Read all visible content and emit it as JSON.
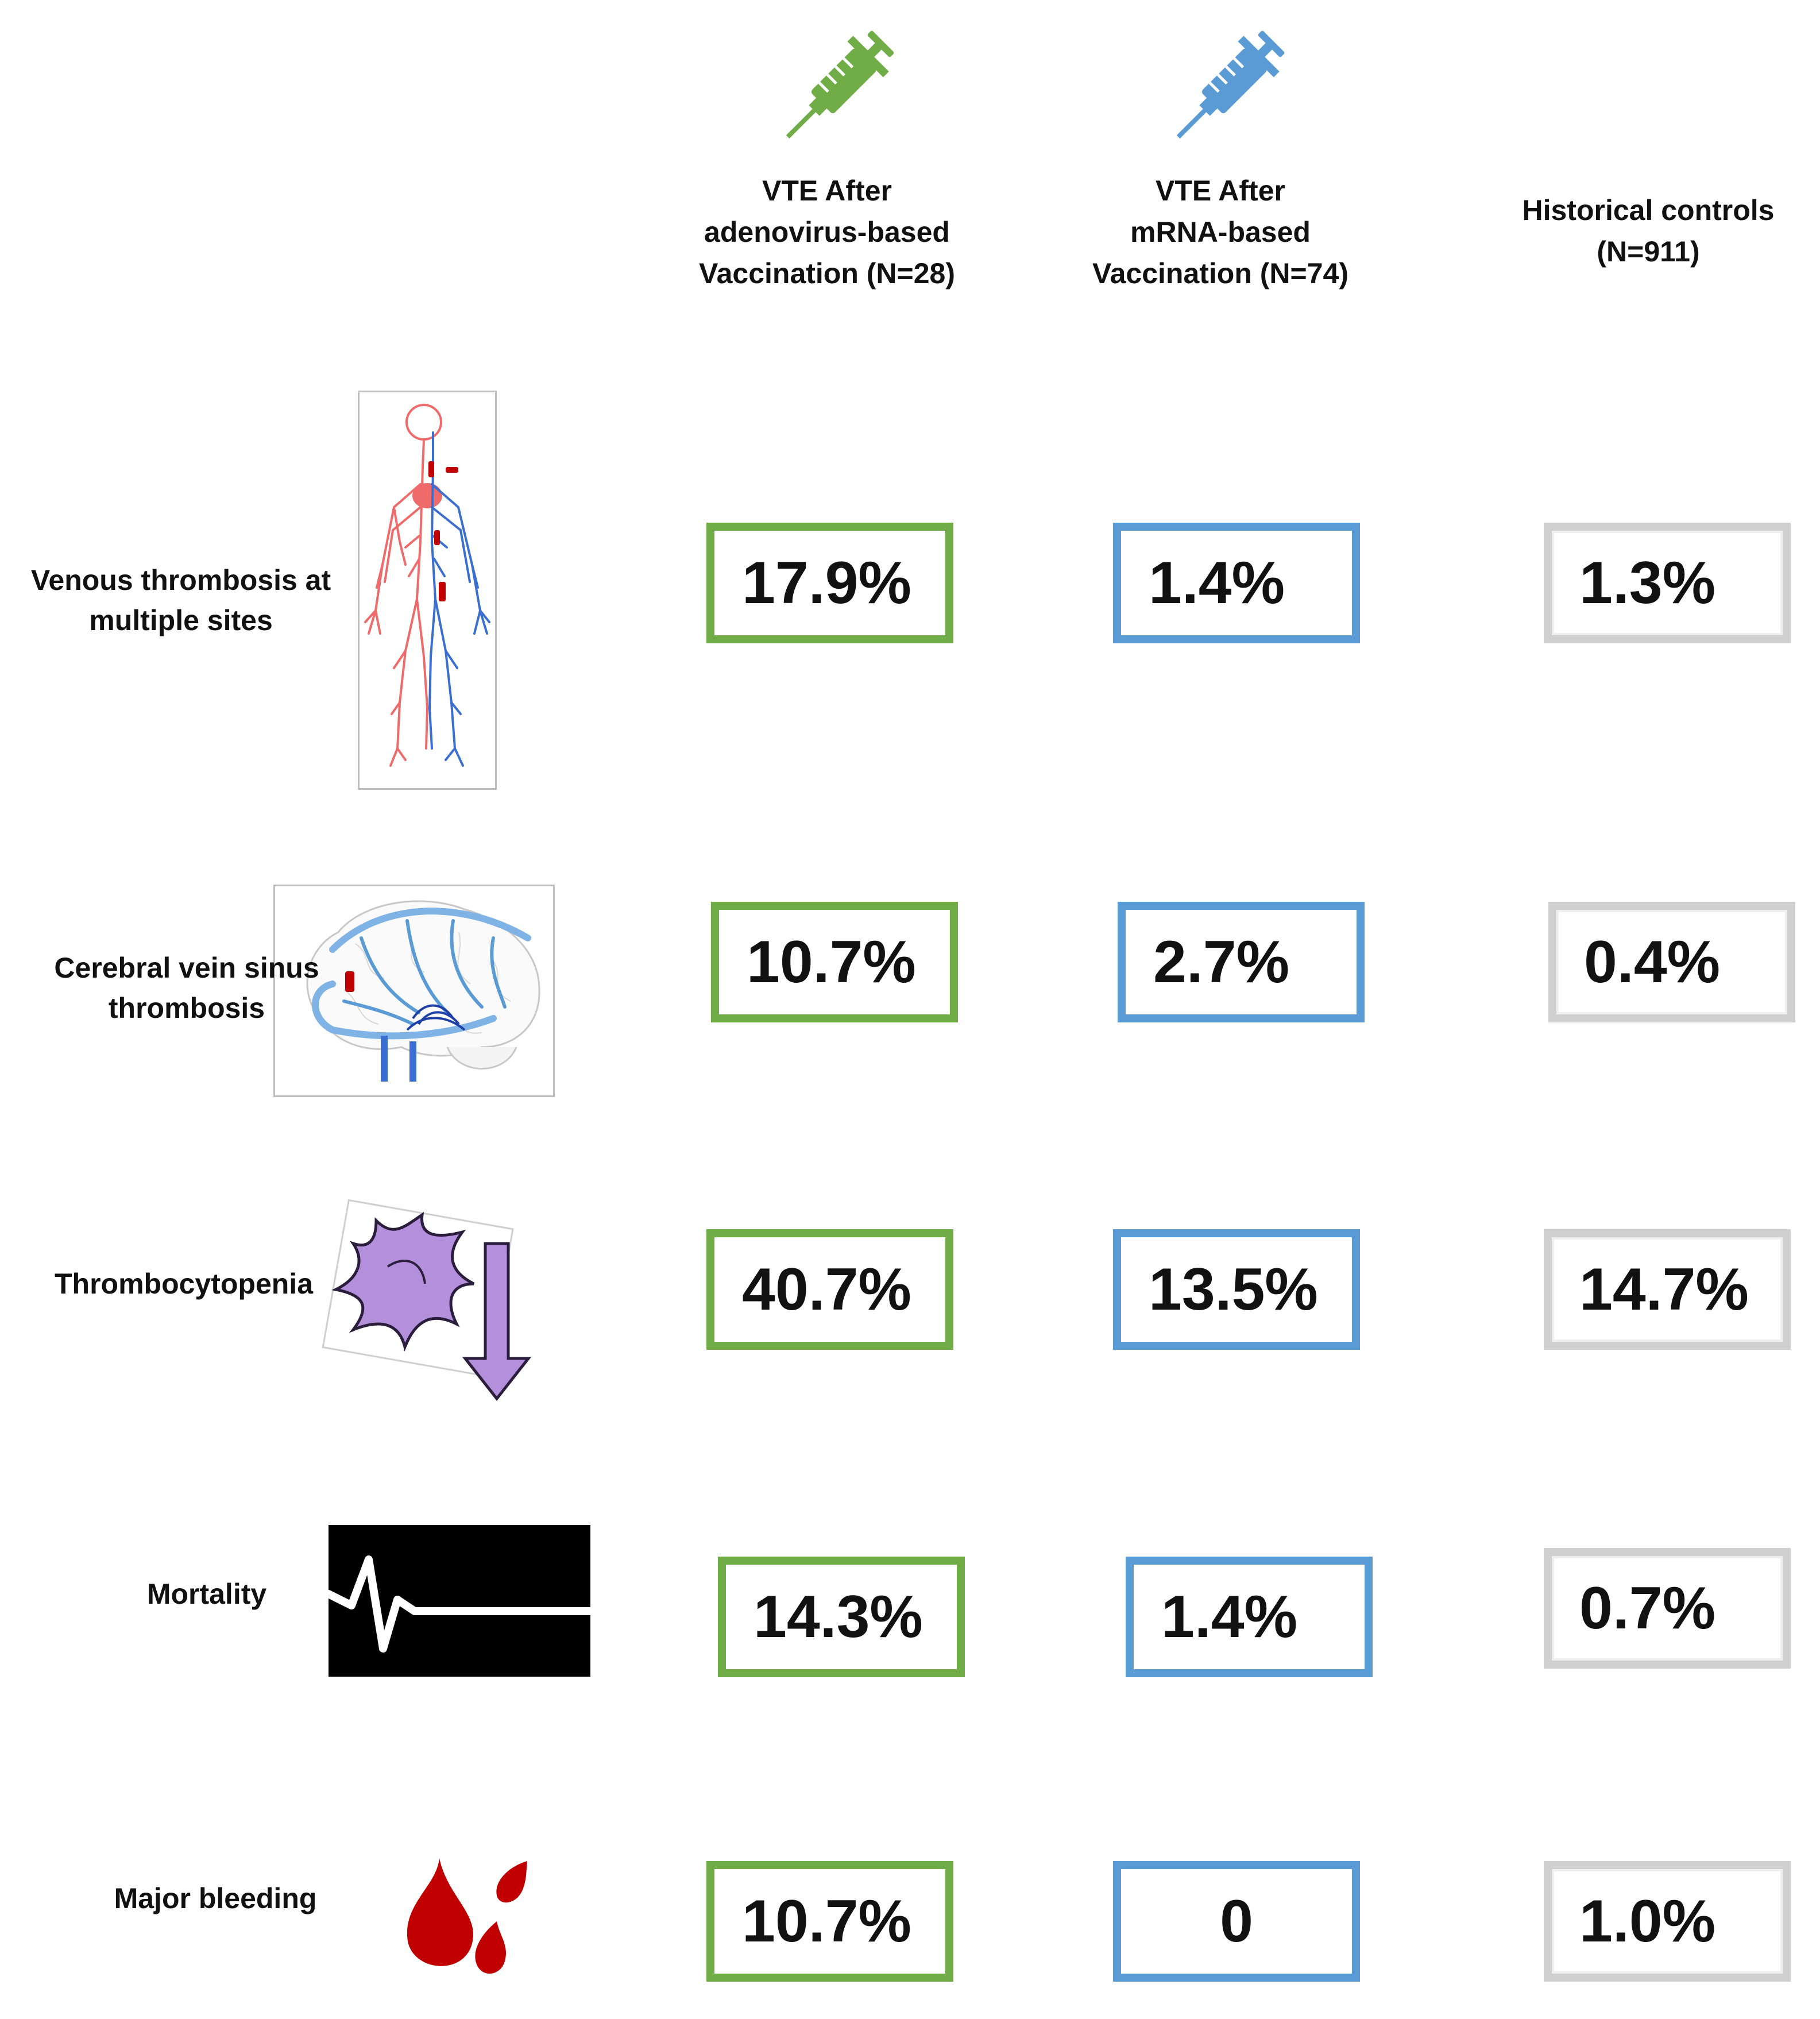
{
  "colors": {
    "adenovirus": "#70ad47",
    "mrna": "#5b9bd5",
    "historical": "#d0d0d0",
    "blood": "#c00000",
    "platelet": "#b48fdb"
  },
  "icons": {
    "adenovirus_syringe": "syringe-icon",
    "mrna_syringe": "syringe-icon",
    "venous": "venous-system-icon",
    "cerebral": "brain-veins-icon",
    "thrombocytopenia": "platelet-down-arrow-icon",
    "mortality": "ecg-flatline-icon",
    "bleeding": "blood-drops-icon"
  },
  "columns": [
    {
      "lines": [
        "VTE After",
        "adenovirus-based",
        "Vaccination (N=28)"
      ]
    },
    {
      "lines": [
        "VTE After",
        "mRNA-based",
        "Vaccination (N=74)"
      ]
    },
    {
      "lines": [
        "Historical controls",
        "(N=911)"
      ]
    }
  ],
  "rows": [
    {
      "label_lines": [
        "Venous thrombosis at",
        "multiple sites"
      ],
      "values": [
        "17.9%",
        "1.4%",
        "1.3%"
      ]
    },
    {
      "label_lines": [
        "Cerebral vein sinus",
        "thrombosis"
      ],
      "values": [
        "10.7%",
        "2.7%",
        "0.4%"
      ]
    },
    {
      "label_lines": [
        "Thrombocytopenia"
      ],
      "values": [
        "40.7%",
        "13.5%",
        "14.7%"
      ]
    },
    {
      "label_lines": [
        "Mortality"
      ],
      "values": [
        "14.3%",
        "1.4%",
        "0.7%"
      ]
    },
    {
      "label_lines": [
        "Major bleeding"
      ],
      "values": [
        "10.7%",
        "0",
        "1.0%"
      ]
    }
  ]
}
